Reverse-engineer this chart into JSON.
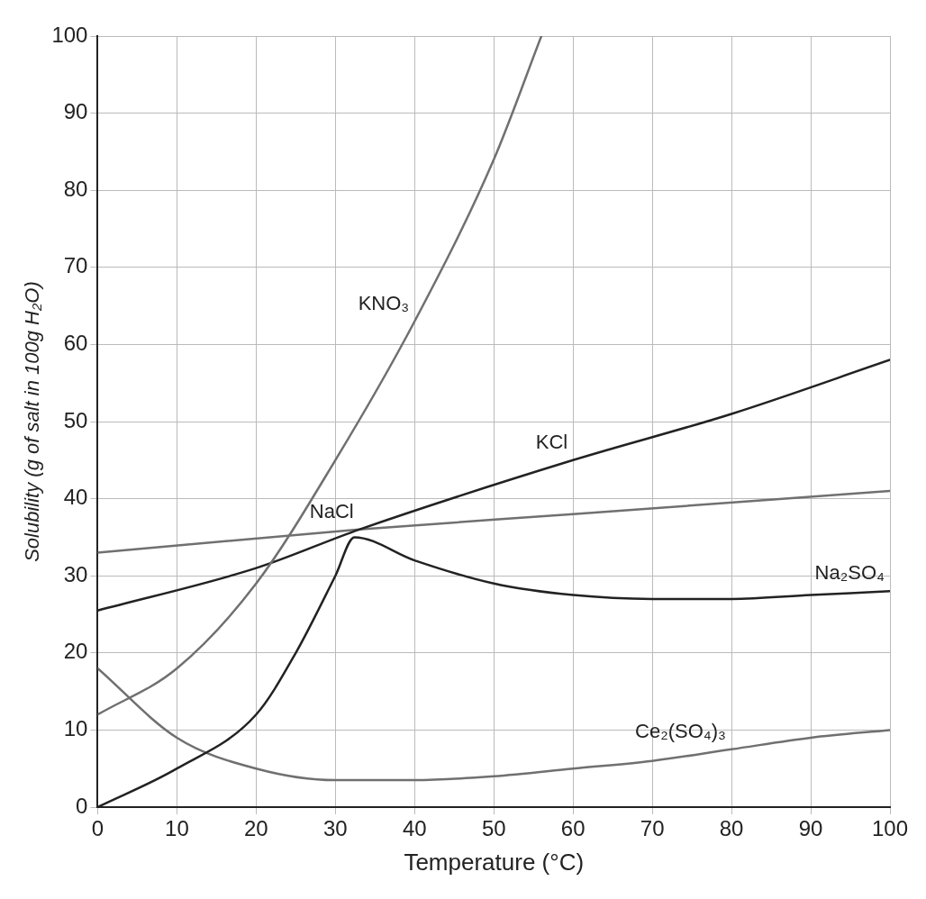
{
  "chart_data": {
    "type": "line",
    "xlabel": "Temperature (°C)",
    "ylabel": "Solubility (g of salt in 100g H₂O)",
    "xlim": [
      0,
      100
    ],
    "xticks": [
      0,
      10,
      20,
      30,
      40,
      50,
      60,
      70,
      80,
      90,
      100
    ],
    "ylim": [
      0,
      100
    ],
    "yticks": [
      0,
      10,
      20,
      30,
      40,
      50,
      60,
      70,
      80,
      90,
      100
    ],
    "grid": true,
    "legend": false,
    "marker": "none",
    "line_style": "solid",
    "series": [
      {
        "color": "#707070",
        "x": [
          0,
          10,
          20,
          30,
          40,
          50,
          56
        ],
        "values": [
          12,
          18,
          29,
          45,
          63,
          84,
          100
        ]
      },
      {
        "color": "#222222",
        "x": [
          0,
          20,
          33,
          60,
          80,
          100
        ],
        "values": [
          25.5,
          31,
          36,
          45,
          51,
          58
        ]
      },
      {
        "color": "#707070",
        "x": [
          0,
          33,
          60,
          100
        ],
        "values": [
          33,
          36,
          38,
          41
        ]
      },
      {
        "color": "#222222",
        "x": [
          0,
          10,
          20,
          25,
          30,
          32.4,
          40,
          50,
          60,
          70,
          80,
          90,
          100
        ],
        "values": [
          0,
          5,
          12,
          20,
          30,
          35,
          32,
          29,
          27.5,
          27,
          27,
          27.5,
          28
        ]
      },
      {
        "color": "#707070",
        "x": [
          0,
          10,
          20,
          30,
          40,
          50,
          60,
          70,
          80,
          90,
          100
        ],
        "values": [
          18,
          9,
          5,
          3.5,
          3.5,
          4,
          5,
          6,
          7.5,
          9,
          10
        ]
      }
    ],
    "annotations": [
      {
        "text": "KNO₃",
        "x": 40,
        "y": 63
      },
      {
        "text": "KCl",
        "x": 60,
        "y": 45
      },
      {
        "text": "NaCl",
        "x": 33,
        "y": 36
      },
      {
        "text": "Na₂SO₄",
        "x": 100,
        "y": 28
      },
      {
        "text": "Ce₂(SO₄)₃",
        "x": 80,
        "y": 7.5
      }
    ]
  }
}
